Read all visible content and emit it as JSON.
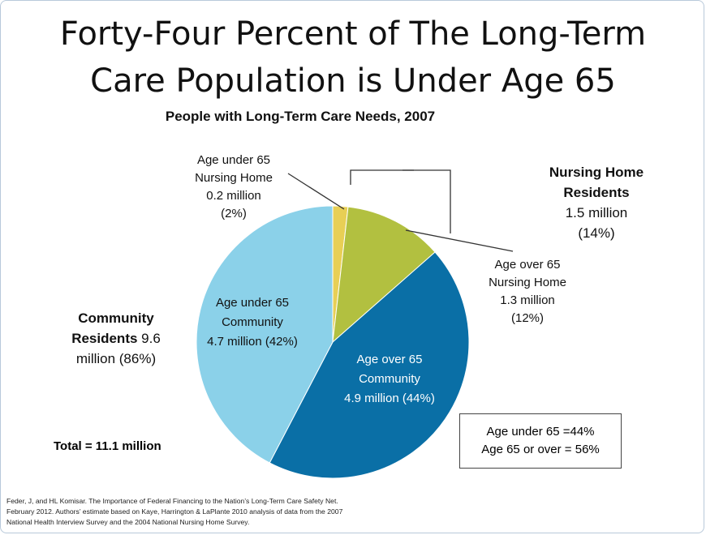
{
  "title_line1": "Forty-Four Percent of The Long-Term",
  "title_line2": "Care Population is Under Age 65",
  "colors": {
    "background": "#ffffff",
    "border": "#b8c9da"
  },
  "chart_data": {
    "type": "pie",
    "title": "People with Long-Term Care Needs, 2007",
    "unit": "million",
    "slices": [
      {
        "label": "Age under 65 Nursing Home",
        "value": 0.2,
        "percent": "2%",
        "color": "#e8cf55"
      },
      {
        "label": "Age over 65 Nursing Home",
        "value": 1.3,
        "percent": "12%",
        "color": "#b2c040"
      },
      {
        "label": "Age over 65 Community",
        "value": 4.9,
        "percent": "44%",
        "color": "#0a6fa6"
      },
      {
        "label": "Age under 65 Community",
        "value": 4.7,
        "percent": "42%",
        "color": "#8bd1e9"
      }
    ],
    "slice_labels": {
      "under65_nh": [
        "Age under 65",
        "Nursing Home",
        "0.2 million",
        "(2%)"
      ],
      "over65_nh": [
        "Age over 65",
        "Nursing Home",
        "1.3 million",
        "(12%)"
      ],
      "over65_comm": [
        "Age over 65",
        "Community",
        "4.9 million (44%)"
      ],
      "under65_comm": [
        "Age under 65",
        "Community",
        "4.7 million (42%)"
      ]
    },
    "group_labels": {
      "nursing_home": {
        "line1": "Nursing Home",
        "line2": "Residents",
        "line3": "1.5 million",
        "line4": "(14%)"
      },
      "community": {
        "bold1": "Community",
        "bold2": "Residents",
        "rest2": " 9.6",
        "line3": "million (86%)"
      }
    },
    "summary": [
      "Age under 65 =44%",
      "Age 65 or over = 56%"
    ],
    "total": "Total = 11.1 million"
  },
  "source": [
    "Feder, J, and HL Komisar. The Importance of Federal Financing to the Nation’s Long-Term Care Safety Net.",
    "February 2012. Authors’ estimate based on Kaye, Harrington & LaPlante 2010 analysis of data from the 2007",
    "National Health Interview Survey and the 2004 National Nursing Home Survey."
  ]
}
